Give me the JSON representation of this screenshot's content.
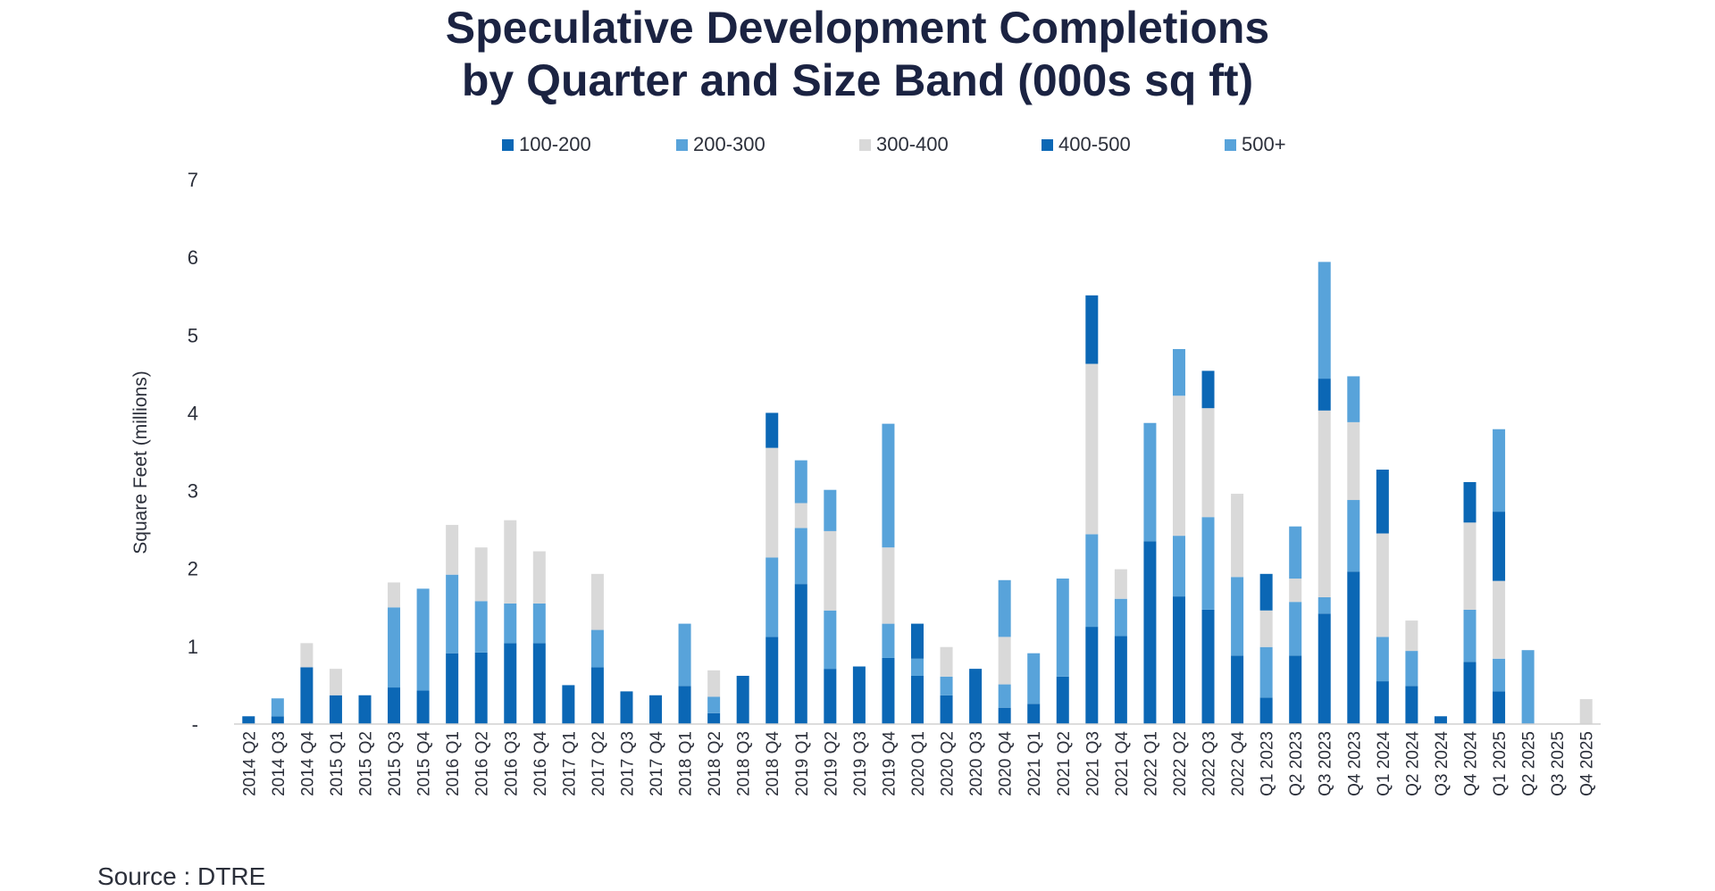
{
  "title_line1": "Speculative Development Completions",
  "title_line2": "by Quarter and Size Band (000s sq ft)",
  "source": "Source : DTRE",
  "colors": {
    "dark_blue": "#0b67b5",
    "light_blue": "#58a3da",
    "grey": "#d9d9d9"
  },
  "chart_data": {
    "type": "bar",
    "stacked": true,
    "title": "Speculative Development Completions by Quarter and Size Band (000s sq ft)",
    "ylabel": "Square Feet (millions)",
    "xlabel": "",
    "ylim": [
      0,
      7
    ],
    "yticks": [
      "-",
      "1",
      "2",
      "3",
      "4",
      "5",
      "6",
      "7"
    ],
    "grid": false,
    "legend_position": "top",
    "categories": [
      "2014 Q2",
      "2014 Q3",
      "2014 Q4",
      "2015 Q1",
      "2015 Q2",
      "2015 Q3",
      "2015 Q4",
      "2016 Q1",
      "2016 Q2",
      "2016 Q3",
      "2016 Q4",
      "2017 Q1",
      "2017 Q2",
      "2017 Q3",
      "2017 Q4",
      "2018 Q1",
      "2018 Q2",
      "2018 Q3",
      "2018 Q4",
      "2019 Q1",
      "2019 Q2",
      "2019 Q3",
      "2019 Q4",
      "2020 Q1",
      "2020 Q2",
      "2020 Q3",
      "2020 Q4",
      "2021 Q1",
      "2021 Q2",
      "2021 Q3",
      "2021 Q4",
      "2022 Q1",
      "2022 Q2",
      "2022 Q3",
      "2022 Q4",
      "Q1 2023",
      "Q2 2023",
      "Q3 2023",
      "Q4 2023",
      "Q1 2024",
      "Q2 2024",
      "Q3 2024",
      "Q4 2024",
      "Q1 2025",
      "Q2 2025",
      "Q3 2025",
      "Q4 2025"
    ],
    "series": [
      {
        "name": "100-200",
        "color": "#0b67b5",
        "values": [
          0.1,
          0.1,
          0.73,
          0.37,
          0.37,
          0.47,
          0.43,
          0.91,
          0.92,
          1.04,
          1.04,
          0.5,
          0.73,
          0.42,
          0.37,
          0.49,
          0.14,
          0.62,
          1.12,
          1.8,
          0.71,
          0.74,
          0.85,
          0.62,
          0.37,
          0.71,
          0.21,
          0.26,
          0.61,
          1.25,
          1.13,
          2.35,
          1.64,
          1.47,
          0.88,
          0.34,
          0.88,
          1.42,
          1.96,
          0.55,
          0.49,
          0.1,
          0.8,
          0.42,
          0,
          0,
          0
        ]
      },
      {
        "name": "200-300",
        "color": "#58a3da",
        "values": [
          0,
          0.23,
          0,
          0,
          0,
          1.03,
          1.31,
          1.01,
          0.66,
          0.51,
          0.51,
          0,
          0.48,
          0,
          0,
          0.8,
          0.21,
          0,
          1.02,
          0.72,
          0.75,
          0,
          0.44,
          0.22,
          0.24,
          0,
          0.3,
          0.65,
          1.26,
          1.19,
          0.48,
          0,
          0.78,
          1.19,
          1.01,
          0.65,
          0.69,
          0.21,
          0.92,
          0.57,
          0.45,
          0,
          0.67,
          0.42,
          0.95,
          0,
          0
        ]
      },
      {
        "name": "300-400",
        "color": "#d9d9d9",
        "values": [
          0,
          0,
          0.31,
          0.34,
          0,
          0.32,
          0,
          0.64,
          0.69,
          1.07,
          0.67,
          0,
          0.72,
          0,
          0,
          0,
          0.34,
          0,
          1.41,
          0.32,
          1.02,
          0,
          0.98,
          0,
          0.38,
          0,
          0.61,
          0,
          0,
          2.19,
          0.38,
          0,
          1.8,
          1.4,
          1.07,
          0.47,
          0.3,
          2.4,
          1.0,
          1.33,
          0.39,
          0,
          1.12,
          1.0,
          0,
          0,
          0.32
        ]
      },
      {
        "name": "400-500",
        "color": "#0b67b5",
        "values": [
          0,
          0,
          0,
          0,
          0,
          0,
          0,
          0,
          0,
          0,
          0,
          0,
          0,
          0,
          0,
          0,
          0,
          0,
          0.45,
          0,
          0,
          0,
          0,
          0.45,
          0,
          0,
          0,
          0,
          0,
          0.88,
          0,
          0,
          0,
          0.48,
          0,
          0.47,
          0,
          0.41,
          0,
          0.82,
          0,
          0,
          0.52,
          0.89,
          0,
          0,
          0
        ]
      },
      {
        "name": "500+",
        "color": "#58a3da",
        "values": [
          0,
          0,
          0,
          0,
          0,
          0,
          0,
          0,
          0,
          0,
          0,
          0,
          0,
          0,
          0,
          0,
          0,
          0,
          0,
          0.55,
          0.53,
          0,
          1.59,
          0,
          0,
          0,
          0.73,
          0,
          0,
          0,
          0,
          1.52,
          0.6,
          0,
          0,
          0,
          0.67,
          1.5,
          0.59,
          0,
          0,
          0,
          0,
          1.06,
          0,
          0,
          0
        ]
      }
    ]
  }
}
